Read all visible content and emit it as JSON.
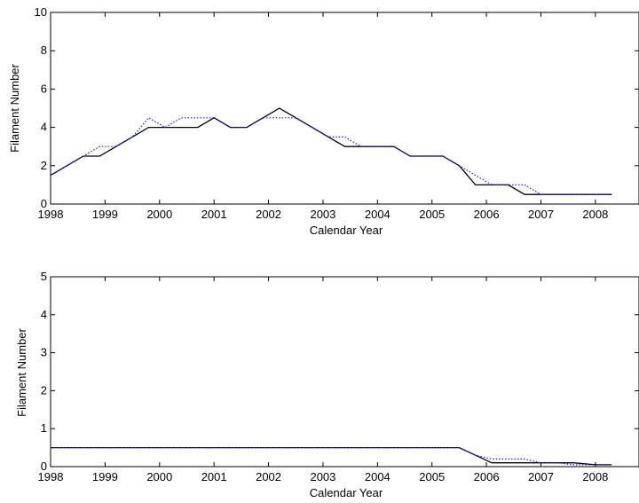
{
  "colors": {
    "series_a": "#000000",
    "series_b": "#1f1fd6",
    "axes": "#000000",
    "background": "#ffffff"
  },
  "chart_data": [
    {
      "type": "line",
      "xlabel": "Calendar Year",
      "ylabel": "Filament Number",
      "xlim": [
        1998,
        2008.8
      ],
      "ylim": [
        0,
        10
      ],
      "xticks": [
        1998,
        1999,
        2000,
        2001,
        2002,
        2003,
        2004,
        2005,
        2006,
        2007,
        2008
      ],
      "yticks": [
        0,
        2,
        4,
        6,
        8,
        10
      ],
      "grid": false,
      "series": [
        {
          "style": "solid",
          "color": "#000000",
          "x": [
            1998.0,
            1998.3,
            1998.6,
            1998.9,
            1999.2,
            1999.5,
            1999.8,
            2000.1,
            2000.4,
            2000.7,
            2001.0,
            2001.3,
            2001.6,
            2001.9,
            2002.2,
            2002.5,
            2002.8,
            2003.1,
            2003.4,
            2003.7,
            2004.0,
            2004.3,
            2004.6,
            2004.9,
            2005.2,
            2005.5,
            2005.8,
            2006.1,
            2006.4,
            2006.7,
            2007.0,
            2007.3,
            2007.6,
            2008.0,
            2008.3
          ],
          "values": [
            1.5,
            2,
            2.5,
            2.5,
            3,
            3.5,
            4,
            4,
            4,
            4,
            4.5,
            4,
            4,
            4.5,
            5,
            4.5,
            4,
            3.5,
            3,
            3,
            3,
            3,
            2.5,
            2.5,
            2.5,
            2,
            1,
            1,
            1,
            0.5,
            0.5,
            0.5,
            0.5,
            0.5,
            0.5
          ]
        },
        {
          "style": "dotted",
          "color": "#1f1fd6",
          "x": [
            1998.0,
            1998.3,
            1998.6,
            1998.9,
            1999.2,
            1999.5,
            1999.8,
            2000.1,
            2000.4,
            2000.7,
            2001.0,
            2001.3,
            2001.6,
            2001.9,
            2002.2,
            2002.5,
            2002.8,
            2003.1,
            2003.4,
            2003.7,
            2004.0,
            2004.3,
            2004.6,
            2004.9,
            2005.2,
            2005.5,
            2005.8,
            2006.1,
            2006.4,
            2006.7,
            2007.0,
            2007.3,
            2007.6,
            2008.0,
            2008.3
          ],
          "values": [
            1.5,
            2,
            2.5,
            3,
            3,
            3.5,
            4.5,
            4,
            4.5,
            4.5,
            4.5,
            4,
            4,
            4.5,
            4.5,
            4.5,
            4,
            3.5,
            3.5,
            3,
            3,
            3,
            2.5,
            2.5,
            2.5,
            2,
            1.5,
            1,
            1,
            1,
            0.5,
            0.5,
            0.5,
            0.5,
            0.5
          ]
        }
      ]
    },
    {
      "type": "line",
      "xlabel": "Calendar Year",
      "ylabel": "Filament Number",
      "xlim": [
        1998,
        2008.8
      ],
      "ylim": [
        0,
        5
      ],
      "xticks": [
        1998,
        1999,
        2000,
        2001,
        2002,
        2003,
        2004,
        2005,
        2006,
        2007,
        2008
      ],
      "yticks": [
        0,
        1,
        2,
        3,
        4,
        5
      ],
      "grid": false,
      "series": [
        {
          "style": "solid",
          "color": "#000000",
          "x": [
            1998.0,
            1998.3,
            1998.6,
            1998.9,
            1999.2,
            1999.5,
            1999.8,
            2000.1,
            2000.4,
            2000.7,
            2001.0,
            2001.3,
            2001.6,
            2001.9,
            2002.2,
            2002.5,
            2002.8,
            2003.1,
            2003.4,
            2003.7,
            2004.0,
            2004.3,
            2004.6,
            2004.9,
            2005.2,
            2005.5,
            2005.8,
            2006.1,
            2006.4,
            2006.7,
            2007.0,
            2007.3,
            2007.6,
            2008.0,
            2008.3
          ],
          "values": [
            0.5,
            0.5,
            0.5,
            0.5,
            0.5,
            0.5,
            0.5,
            0.5,
            0.5,
            0.5,
            0.5,
            0.5,
            0.5,
            0.5,
            0.5,
            0.5,
            0.5,
            0.5,
            0.5,
            0.5,
            0.5,
            0.5,
            0.5,
            0.5,
            0.5,
            0.5,
            0.3,
            0.1,
            0.1,
            0.1,
            0.1,
            0.1,
            0.1,
            0.05,
            0.05
          ]
        },
        {
          "style": "dotted",
          "color": "#1f1fd6",
          "x": [
            1998.0,
            1998.3,
            1998.6,
            1998.9,
            1999.2,
            1999.5,
            1999.8,
            2000.1,
            2000.4,
            2000.7,
            2001.0,
            2001.3,
            2001.6,
            2001.9,
            2002.2,
            2002.5,
            2002.8,
            2003.1,
            2003.4,
            2003.7,
            2004.0,
            2004.3,
            2004.6,
            2004.9,
            2005.2,
            2005.5,
            2005.8,
            2006.1,
            2006.4,
            2006.7,
            2007.0,
            2007.3,
            2007.6,
            2008.0,
            2008.3
          ],
          "values": [
            0.5,
            0.5,
            0.5,
            0.5,
            0.5,
            0.5,
            0.5,
            0.5,
            0.5,
            0.5,
            0.5,
            0.5,
            0.5,
            0.5,
            0.5,
            0.5,
            0.5,
            0.5,
            0.5,
            0.5,
            0.5,
            0.5,
            0.5,
            0.5,
            0.5,
            0.5,
            0.3,
            0.2,
            0.2,
            0.2,
            0.1,
            0.1,
            0.05,
            0.05,
            0.05
          ]
        }
      ]
    }
  ]
}
